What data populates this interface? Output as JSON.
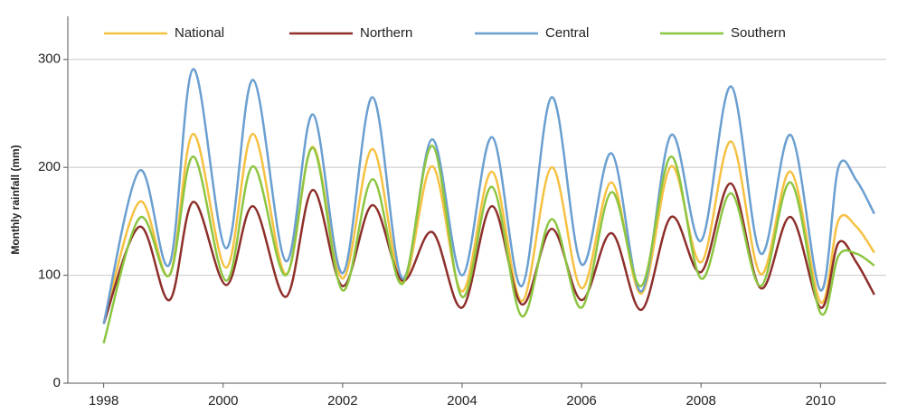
{
  "chart_data": {
    "type": "line",
    "y_label": "Monthly rainfall (mm)",
    "x": [
      1998.0,
      1998.6,
      1999.1,
      1999.5,
      2000.05,
      2000.5,
      2001.05,
      2001.5,
      2002.0,
      2002.5,
      2003.0,
      2003.5,
      2004.0,
      2004.5,
      2005.0,
      2005.5,
      2006.0,
      2006.5,
      2007.0,
      2007.5,
      2008.0,
      2008.5,
      2009.0,
      2009.5,
      2010.0,
      2010.3,
      2010.6,
      2010.9
    ],
    "series": [
      {
        "name": "National",
        "color": "#f6c141",
        "values": [
          55,
          168,
          100,
          231,
          107,
          231,
          101,
          219,
          97,
          217,
          93,
          201,
          85,
          196,
          76,
          200,
          88,
          186,
          83,
          201,
          112,
          224,
          101,
          196,
          75,
          151,
          145,
          121
        ]
      },
      {
        "name": "Northern",
        "color": "#8e2f2b",
        "values": [
          55,
          145,
          77,
          168,
          91,
          164,
          80,
          179,
          90,
          165,
          95,
          140,
          70,
          164,
          73,
          143,
          77,
          139,
          68,
          154,
          103,
          185,
          88,
          154,
          70,
          130,
          112,
          82
        ]
      },
      {
        "name": "Central",
        "color": "#6a9fd0",
        "values": [
          55,
          197,
          110,
          291,
          125,
          281,
          113,
          249,
          102,
          265,
          97,
          226,
          100,
          228,
          90,
          265,
          110,
          213,
          85,
          230,
          132,
          275,
          120,
          230,
          86,
          200,
          188,
          157
        ]
      },
      {
        "name": "Southern",
        "color": "#8cc540",
        "values": [
          37,
          153,
          100,
          210,
          95,
          201,
          100,
          218,
          86,
          189,
          92,
          220,
          80,
          182,
          62,
          152,
          70,
          177,
          90,
          210,
          97,
          176,
          90,
          186,
          65,
          118,
          120,
          109
        ]
      }
    ],
    "xlim": [
      1997.4,
      2011.1
    ],
    "xticks": [
      1998,
      2000,
      2002,
      2004,
      2006,
      2008,
      2010
    ],
    "ylim": [
      0,
      340
    ],
    "yticks": [
      0,
      100,
      200,
      300
    ],
    "grid": true
  }
}
